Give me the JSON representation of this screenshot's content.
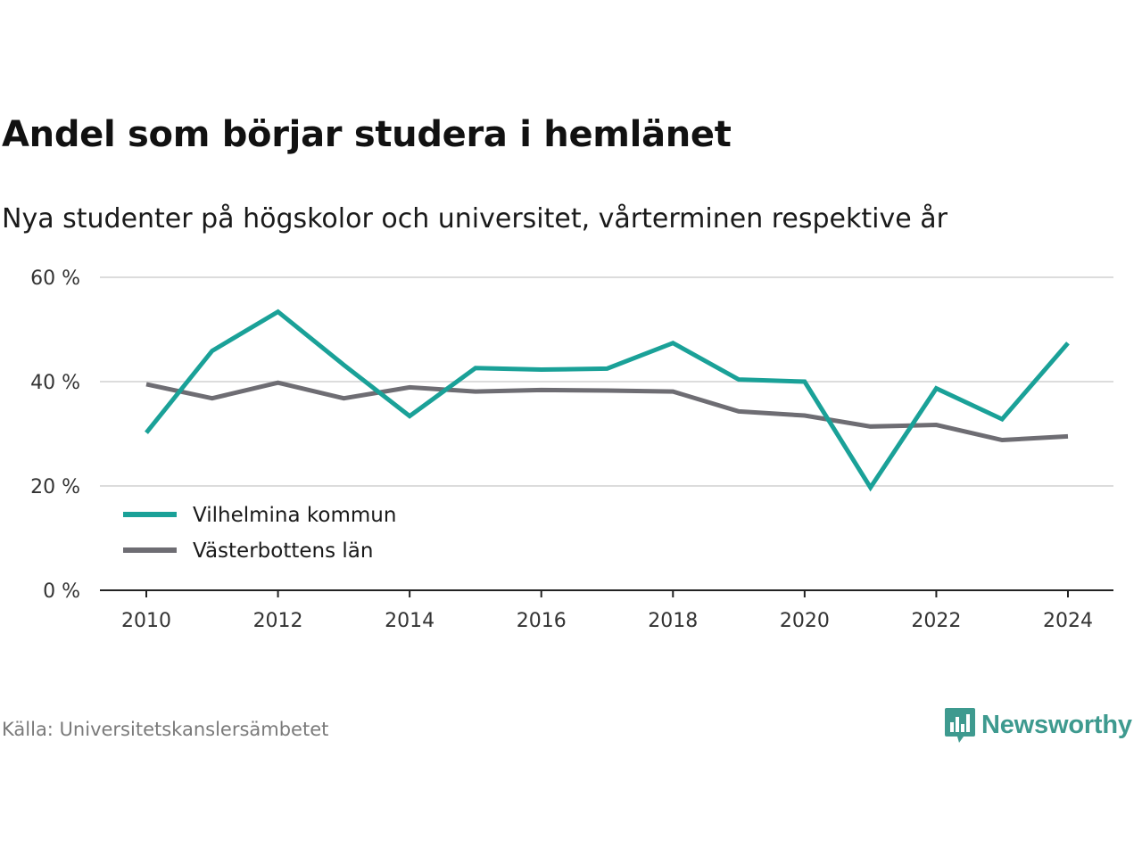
{
  "chart_data": {
    "type": "line",
    "title": "Andel som börjar studera i hemlänet",
    "subtitle": "Nya studenter på högskolor och universitet, vårterminen respektive år",
    "x": [
      2010,
      2011,
      2012,
      2013,
      2014,
      2015,
      2016,
      2017,
      2018,
      2019,
      2020,
      2021,
      2022,
      2023,
      2024
    ],
    "series": [
      {
        "name": "Vilhelmina kommun",
        "color": "#1aa198",
        "values": [
          30.2,
          45.9,
          53.4,
          43.2,
          33.4,
          42.6,
          42.3,
          42.5,
          47.4,
          40.4,
          40.0,
          19.7,
          38.7,
          32.8,
          47.4
        ]
      },
      {
        "name": "Västerbottens län",
        "color": "#6e6d73",
        "values": [
          39.5,
          36.8,
          39.8,
          36.8,
          38.9,
          38.1,
          38.4,
          38.3,
          38.1,
          34.3,
          33.5,
          31.4,
          31.7,
          28.8,
          29.5
        ]
      }
    ],
    "xticks": [
      {
        "value": 2010,
        "label": "2010"
      },
      {
        "value": 2012,
        "label": "2012"
      },
      {
        "value": 2014,
        "label": "2014"
      },
      {
        "value": 2016,
        "label": "2016"
      },
      {
        "value": 2018,
        "label": "2018"
      },
      {
        "value": 2020,
        "label": "2020"
      },
      {
        "value": 2022,
        "label": "2022"
      },
      {
        "value": 2024,
        "label": "2024"
      }
    ],
    "yticks": [
      {
        "value": 0,
        "label": "0 %"
      },
      {
        "value": 20,
        "label": "20 %"
      },
      {
        "value": 40,
        "label": "40 %"
      },
      {
        "value": 60,
        "label": "60 %"
      }
    ],
    "ylim": [
      0,
      60
    ],
    "grid": true,
    "legend_position": "bottom-left"
  },
  "footer": {
    "source": "Källa: Universitetskanslersämbetet",
    "logo_text": "Newsworthy",
    "logo_icon": "bar-chart-speech-bubble-icon",
    "logo_color": "#3e9a8f"
  }
}
